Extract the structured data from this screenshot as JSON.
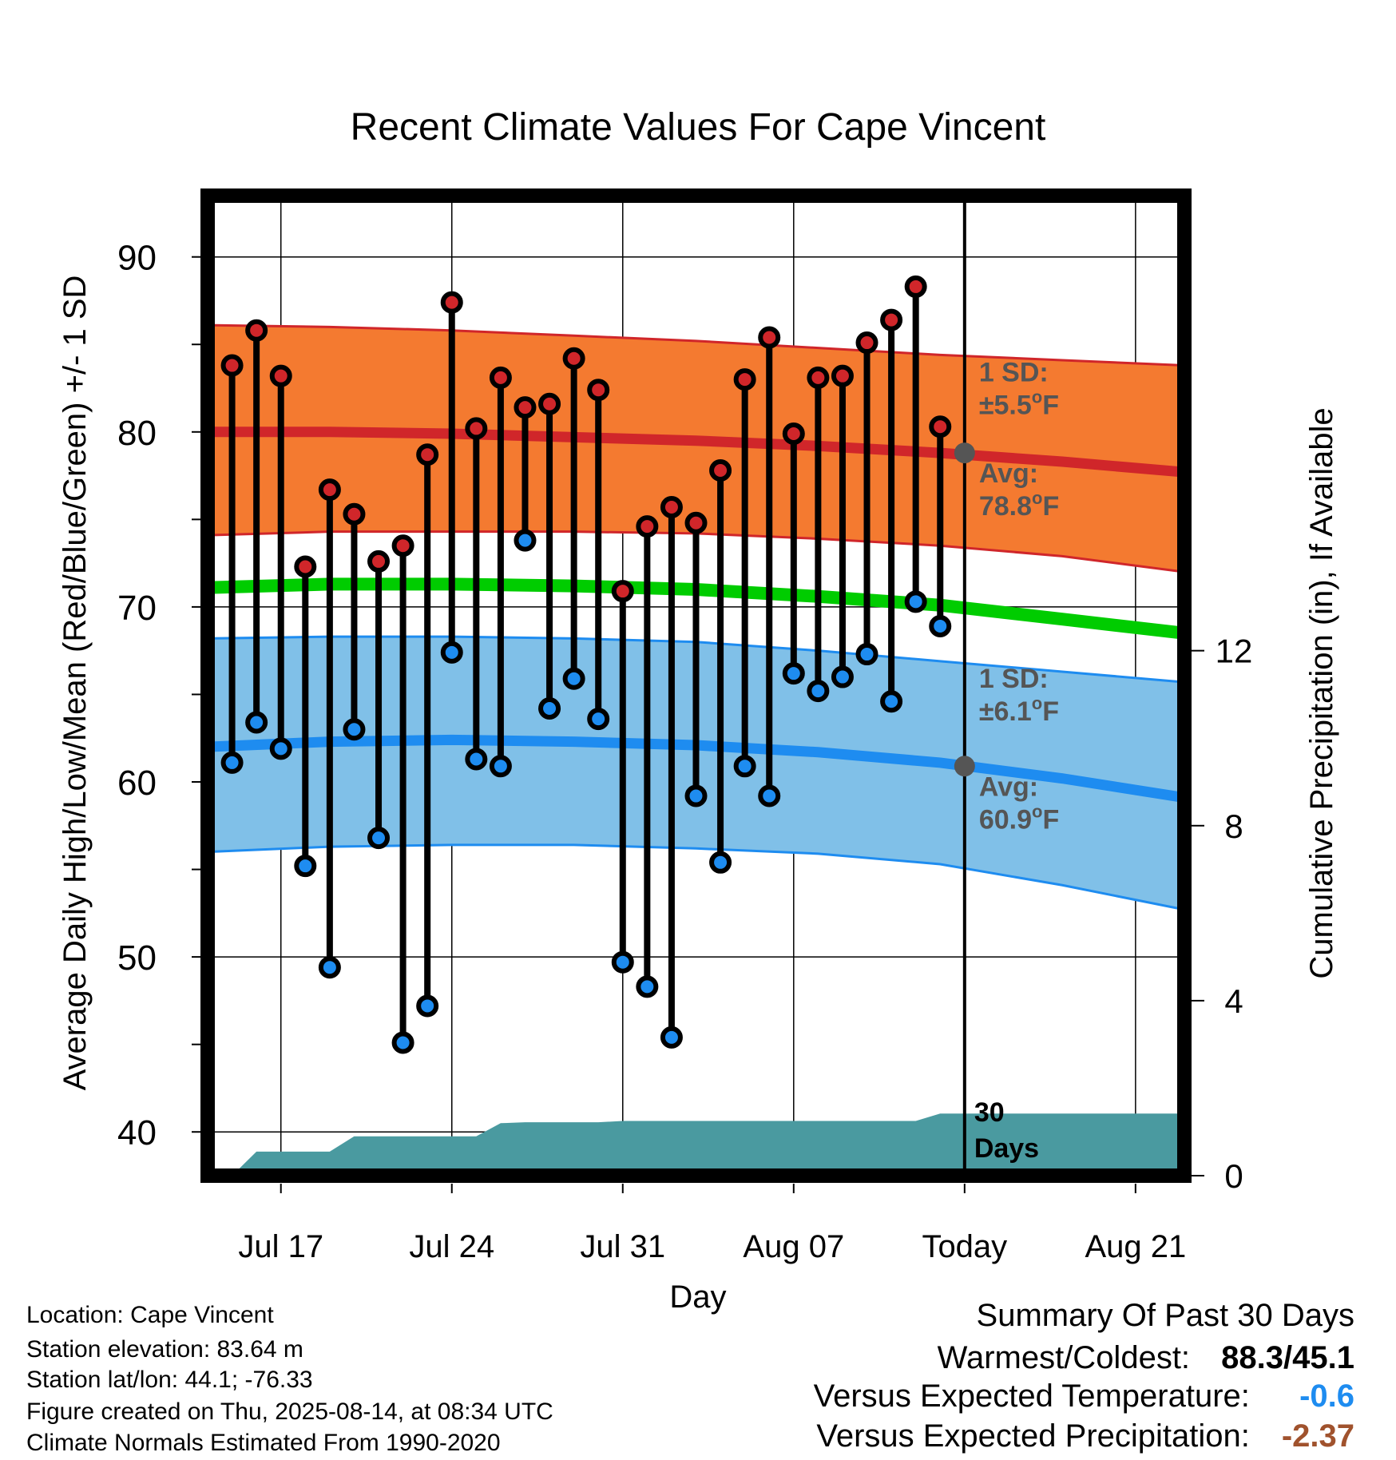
{
  "chart_data": {
    "type": "line",
    "title": "Recent Climate Values For Cape Vincent",
    "xlabel": "Day",
    "ylabel": "Average Daily High/Low/Mean (Red/Blue/Green) +/- 1 SD",
    "y2label": "Cumulative Precipitation (in), If Available",
    "ylim": [
      37.5,
      93.5
    ],
    "y_ticks": [
      40,
      50,
      60,
      70,
      80,
      90
    ],
    "y2lim": [
      0,
      22.4
    ],
    "y2_ticks": [
      0,
      4,
      8,
      12
    ],
    "x_start": "2025-07-14",
    "x_end": "2025-08-23",
    "x_tick_dates": [
      "2025-07-17",
      "2025-07-24",
      "2025-07-31",
      "2025-08-07",
      "2025-08-14",
      "2025-08-21"
    ],
    "x_tick_labels": [
      "Jul 17",
      "Jul 24",
      "Jul 31",
      "Aug 07",
      "Today",
      "Aug 21"
    ],
    "today": "2025-08-14",
    "today_label": "30 Days",
    "grid": true,
    "colors": {
      "high_band": "#f47a30",
      "high_line": "#d0262a",
      "low_band": "#80c0e8",
      "low_line": "#1e8cf0",
      "mean_line": "#00cc00",
      "precip": "#4a9aa0",
      "point_high": "#d0262a",
      "point_low": "#1e8cf0",
      "avg_marker": "#555555",
      "annotation": "#555555"
    },
    "normals": {
      "dates": [
        "2025-07-14",
        "2025-07-19",
        "2025-07-24",
        "2025-07-29",
        "2025-08-03",
        "2025-08-08",
        "2025-08-13",
        "2025-08-18",
        "2025-08-23"
      ],
      "high_mean": [
        80.0,
        80.0,
        79.9,
        79.7,
        79.5,
        79.2,
        78.8,
        78.3,
        77.7
      ],
      "high_upper": [
        86.1,
        86.0,
        85.8,
        85.5,
        85.2,
        84.8,
        84.4,
        84.1,
        83.8
      ],
      "high_lower": [
        74.1,
        74.3,
        74.3,
        74.3,
        74.2,
        73.9,
        73.5,
        72.9,
        72.0
      ],
      "mean": [
        71.1,
        71.3,
        71.3,
        71.2,
        71.0,
        70.6,
        70.1,
        69.3,
        68.5
      ],
      "low_mean": [
        62.0,
        62.3,
        62.4,
        62.3,
        62.1,
        61.7,
        61.1,
        60.2,
        59.1
      ],
      "low_upper": [
        68.2,
        68.3,
        68.3,
        68.2,
        68.0,
        67.5,
        66.9,
        66.3,
        65.7
      ],
      "low_lower": [
        56.0,
        56.3,
        56.4,
        56.4,
        56.2,
        55.9,
        55.3,
        54.1,
        52.7
      ]
    },
    "series": [
      {
        "name": "High",
        "dates": [
          "2025-07-15",
          "2025-07-16",
          "2025-07-17",
          "2025-07-18",
          "2025-07-19",
          "2025-07-20",
          "2025-07-21",
          "2025-07-22",
          "2025-07-23",
          "2025-07-24",
          "2025-07-25",
          "2025-07-26",
          "2025-07-27",
          "2025-07-28",
          "2025-07-29",
          "2025-07-30",
          "2025-07-31",
          "2025-08-01",
          "2025-08-02",
          "2025-08-03",
          "2025-08-04",
          "2025-08-05",
          "2025-08-06",
          "2025-08-07",
          "2025-08-08",
          "2025-08-09",
          "2025-08-10",
          "2025-08-11",
          "2025-08-12",
          "2025-08-13"
        ],
        "values": [
          83.8,
          85.8,
          83.2,
          72.3,
          76.7,
          75.3,
          72.6,
          73.5,
          78.7,
          87.4,
          80.2,
          83.1,
          81.4,
          81.6,
          84.2,
          82.4,
          70.9,
          74.6,
          75.7,
          74.8,
          77.8,
          83.0,
          85.4,
          79.9,
          83.1,
          83.2,
          85.1,
          86.4,
          88.3,
          80.3
        ]
      },
      {
        "name": "Low",
        "dates": [
          "2025-07-15",
          "2025-07-16",
          "2025-07-17",
          "2025-07-18",
          "2025-07-19",
          "2025-07-20",
          "2025-07-21",
          "2025-07-22",
          "2025-07-23",
          "2025-07-24",
          "2025-07-25",
          "2025-07-26",
          "2025-07-27",
          "2025-07-28",
          "2025-07-29",
          "2025-07-30",
          "2025-07-31",
          "2025-08-01",
          "2025-08-02",
          "2025-08-03",
          "2025-08-04",
          "2025-08-05",
          "2025-08-06",
          "2025-08-07",
          "2025-08-08",
          "2025-08-09",
          "2025-08-10",
          "2025-08-11",
          "2025-08-12",
          "2025-08-13"
        ],
        "values": [
          61.1,
          63.4,
          61.9,
          55.2,
          49.4,
          63.0,
          56.8,
          45.1,
          47.2,
          67.4,
          61.3,
          60.9,
          73.8,
          64.2,
          65.9,
          63.6,
          49.7,
          48.3,
          45.4,
          59.2,
          55.4,
          60.9,
          59.2,
          66.2,
          65.2,
          66.0,
          67.3,
          64.6,
          70.3,
          68.9
        ]
      },
      {
        "name": "Cumulative Precipitation",
        "dates": [
          "2025-07-14",
          "2025-07-15",
          "2025-07-16",
          "2025-07-17",
          "2025-07-18",
          "2025-07-19",
          "2025-07-20",
          "2025-07-21",
          "2025-07-22",
          "2025-07-23",
          "2025-07-24",
          "2025-07-25",
          "2025-07-26",
          "2025-07-27",
          "2025-07-28",
          "2025-07-29",
          "2025-07-30",
          "2025-07-31",
          "2025-08-01",
          "2025-08-12",
          "2025-08-13",
          "2025-08-14",
          "2025-08-23"
        ],
        "values": [
          0,
          0,
          0.55,
          0.55,
          0.55,
          0.55,
          0.9,
          0.9,
          0.9,
          0.9,
          0.9,
          0.9,
          1.2,
          1.22,
          1.22,
          1.22,
          1.22,
          1.25,
          1.25,
          1.25,
          1.42,
          1.42,
          1.42
        ]
      }
    ],
    "annotations": {
      "high_sd_label": "1 SD:",
      "high_sd_value": "±5.5",
      "high_avg_label": "Avg:",
      "high_avg_value": "78.8",
      "low_sd_label": "1 SD:",
      "low_sd_value": "±6.1",
      "low_avg_label": "Avg:",
      "low_avg_value": "60.9",
      "degree_symbol": "o",
      "unit": "F",
      "today_top": "30",
      "today_bottom": "Days"
    }
  },
  "info": {
    "location": "Location: Cape Vincent",
    "elevation": "Station elevation: 83.64 m",
    "latlon": "Station lat/lon: 44.1; -76.33",
    "created": "Figure created on Thu, 2025-08-14, at 08:34 UTC",
    "normals": "Climate Normals Estimated From 1990-2020"
  },
  "summary": {
    "title": "Summary Of Past 30 Days",
    "warm_cold_label": "Warmest/Coldest:",
    "warm_cold_value": "88.3/45.1",
    "temp_label": "Versus Expected Temperature:",
    "temp_value": "-0.6",
    "temp_color": "#1e8cf0",
    "precip_label": "Versus Expected Precipitation:",
    "precip_value": "-2.37",
    "precip_color": "#a0522d"
  }
}
